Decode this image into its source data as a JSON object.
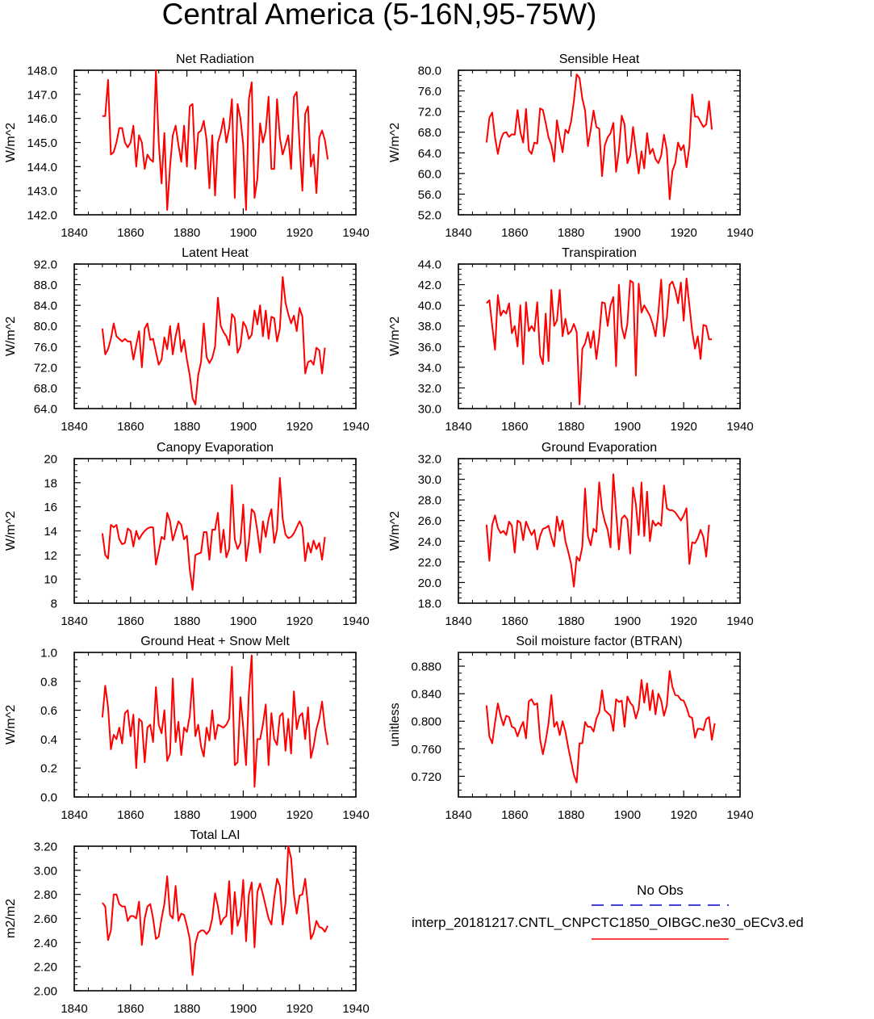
{
  "figure_title": "Central America (5-16N,95-75W)",
  "legend": {
    "obs_label": "No Obs",
    "obs_color": "#0000cc",
    "model_label": "interp_20181217.CNTL_CNPCTC1850_OIBGC.ne30_oECv3.ed",
    "model_color": "#ff0000"
  },
  "colors": {
    "series": "#ff0000",
    "axis": "#000000"
  },
  "chart_data": [
    {
      "type": "line",
      "title": "Net Radiation",
      "ylabel": "W/m^2",
      "xlabel": "",
      "xlim": [
        1840,
        1940
      ],
      "xticks": [
        1840,
        1860,
        1880,
        1900,
        1920,
        1940
      ],
      "ylim": [
        142,
        148
      ],
      "yticks": [
        "142.0",
        "143.0",
        "144.0",
        "145.0",
        "146.0",
        "147.0",
        "148.0"
      ],
      "x_start": 1850,
      "series": [
        {
          "name": "interp_20181217.CNTL_CNPCTC1850_OIBGC.ne30_oECv3.ed",
          "values": [
            146.1,
            146.1,
            147.6,
            144.5,
            144.6,
            145.0,
            145.6,
            145.6,
            145.0,
            144.8,
            145.0,
            145.7,
            144.0,
            145.3,
            145.0,
            143.9,
            144.5,
            144.3,
            144.2,
            148.0,
            145.0,
            143.3,
            145.4,
            142.2,
            144.0,
            145.3,
            145.7,
            144.9,
            144.2,
            145.7,
            144.0,
            146.5,
            146.6,
            143.9,
            145.4,
            145.5,
            145.9,
            145.1,
            143.1,
            145.3,
            142.8,
            145.0,
            145.4,
            146.0,
            145.0,
            145.6,
            146.8,
            142.7,
            146.6,
            146.0,
            144.9,
            142.2,
            146.8,
            147.5,
            142.7,
            143.5,
            145.8,
            145.0,
            145.5,
            146.9,
            143.9,
            143.9,
            146.8,
            145.2,
            144.5,
            144.9,
            145.3,
            143.9,
            146.9,
            147.1,
            144.9,
            143.0,
            146.2,
            146.5,
            144.0,
            144.5,
            142.9,
            145.2,
            145.5,
            145.1,
            144.3
          ]
        }
      ]
    },
    {
      "type": "line",
      "title": "Sensible Heat",
      "ylabel": "W/m^2",
      "xlabel": "",
      "xlim": [
        1840,
        1940
      ],
      "xticks": [
        1840,
        1860,
        1880,
        1900,
        1920,
        1940
      ],
      "ylim": [
        52,
        80
      ],
      "yticks": [
        "52.0",
        "56.0",
        "60.0",
        "64.0",
        "68.0",
        "72.0",
        "76.0",
        "80.0"
      ],
      "x_start": 1850,
      "series": [
        {
          "name": "interp_20181217.CNTL_CNPCTC1850_OIBGC.ne30_oECv3.ed",
          "values": [
            66.0,
            70.8,
            71.8,
            67.0,
            63.8,
            66.5,
            67.8,
            68.0,
            67.1,
            67.6,
            67.5,
            72.3,
            68.0,
            66.0,
            72.5,
            64.5,
            63.8,
            66.0,
            65.8,
            72.6,
            72.3,
            69.8,
            67.0,
            65.5,
            62.3,
            70.3,
            67.0,
            64.1,
            68.5,
            67.8,
            70.0,
            74.0,
            79.2,
            78.5,
            74.5,
            72.2,
            65.3,
            68.5,
            72.2,
            69.0,
            68.7,
            59.5,
            65.5,
            67.0,
            67.8,
            69.8,
            60.3,
            64.5,
            71.2,
            69.5,
            62.0,
            63.5,
            69.0,
            64.5,
            60.0,
            64.3,
            61.0,
            67.8,
            63.8,
            64.8,
            62.8,
            62.0,
            63.5,
            67.5,
            64.5,
            55.0,
            60.5,
            62.0,
            66.0,
            64.5,
            65.5,
            61.2,
            65.2,
            75.3,
            71.0,
            71.0,
            70.0,
            69.0,
            69.5,
            74.0,
            68.5
          ]
        }
      ]
    },
    {
      "type": "line",
      "title": "Latent Heat",
      "ylabel": "W/m^2",
      "xlabel": "",
      "xlim": [
        1840,
        1940
      ],
      "xticks": [
        1840,
        1860,
        1880,
        1900,
        1920,
        1940
      ],
      "ylim": [
        64,
        92
      ],
      "yticks": [
        "64.0",
        "68.0",
        "72.0",
        "76.0",
        "80.0",
        "84.0",
        "88.0",
        "92.0"
      ],
      "x_start": 1850,
      "series": [
        {
          "name": "interp_20181217.CNTL_CNPCTC1850_OIBGC.ne30_oECv3.ed",
          "values": [
            79.5,
            74.5,
            75.5,
            77.5,
            80.5,
            78.0,
            77.5,
            77.0,
            77.5,
            77.0,
            77.0,
            73.5,
            76.3,
            79.0,
            72.0,
            79.5,
            80.5,
            77.3,
            77.5,
            75.0,
            72.5,
            73.5,
            77.8,
            75.5,
            80.0,
            74.5,
            78.0,
            80.5,
            75.0,
            77.3,
            73.5,
            70.5,
            66.0,
            64.8,
            70.5,
            73.0,
            80.5,
            74.0,
            72.8,
            73.8,
            76.0,
            85.5,
            80.0,
            78.8,
            78.0,
            76.3,
            82.3,
            81.5,
            74.8,
            76.0,
            80.8,
            79.8,
            77.5,
            78.3,
            83.0,
            80.3,
            84.0,
            78.0,
            83.0,
            77.5,
            81.8,
            81.5,
            77.0,
            79.5,
            89.5,
            84.5,
            82.3,
            80.5,
            82.0,
            79.0,
            83.5,
            81.8,
            70.8,
            73.0,
            73.3,
            72.5,
            75.8,
            75.3,
            70.8,
            75.8
          ]
        }
      ]
    },
    {
      "type": "line",
      "title": "Transpiration",
      "ylabel": "W/m^2",
      "xlabel": "",
      "xlim": [
        1840,
        1940
      ],
      "xticks": [
        1840,
        1860,
        1880,
        1900,
        1920,
        1940
      ],
      "ylim": [
        30,
        44
      ],
      "yticks": [
        "30.0",
        "32.0",
        "34.0",
        "36.0",
        "38.0",
        "40.0",
        "42.0",
        "44.0"
      ],
      "x_start": 1850,
      "series": [
        {
          "name": "interp_20181217.CNTL_CNPCTC1850_OIBGC.ne30_oECv3.ed",
          "values": [
            40.2,
            40.5,
            38.0,
            35.7,
            41.0,
            39.0,
            39.5,
            39.2,
            40.2,
            37.3,
            38.0,
            36.0,
            40.0,
            34.3,
            40.3,
            37.5,
            38.0,
            37.5,
            40.3,
            35.2,
            34.3,
            39.2,
            34.6,
            41.5,
            38.0,
            38.5,
            41.5,
            37.0,
            38.7,
            37.2,
            37.5,
            38.2,
            37.4,
            30.4,
            35.8,
            36.3,
            37.4,
            35.9,
            37.5,
            34.8,
            37.0,
            40.3,
            40.2,
            38.0,
            40.0,
            40.8,
            34.1,
            42.0,
            37.9,
            36.8,
            38.2,
            42.4,
            42.2,
            33.2,
            42.1,
            39.3,
            40.0,
            39.5,
            39.0,
            38.2,
            37.0,
            39.3,
            42.5,
            37.0,
            38.8,
            42.0,
            42.3,
            41.5,
            40.2,
            42.2,
            38.5,
            42.6,
            40.0,
            37.5,
            35.8,
            37.0,
            34.8,
            38.1,
            38.0,
            36.7,
            36.7
          ]
        }
      ]
    },
    {
      "type": "line",
      "title": "Canopy Evaporation",
      "ylabel": "W/m^2",
      "xlabel": "",
      "xlim": [
        1840,
        1940
      ],
      "xticks": [
        1840,
        1860,
        1880,
        1900,
        1920,
        1940
      ],
      "ylim": [
        8,
        20
      ],
      "yticks": [
        "8",
        "10",
        "12",
        "14",
        "16",
        "18",
        "20"
      ],
      "x_start": 1850,
      "series": [
        {
          "name": "interp_20181217.CNTL_CNPCTC1850_OIBGC.ne30_oECv3.ed",
          "values": [
            13.8,
            12.0,
            11.7,
            14.5,
            14.3,
            14.5,
            13.3,
            12.9,
            13.0,
            14.2,
            14.0,
            12.7,
            14.0,
            13.3,
            13.7,
            14.0,
            14.2,
            14.3,
            14.3,
            11.2,
            12.3,
            13.5,
            13.3,
            15.5,
            14.8,
            13.2,
            14.0,
            14.8,
            14.5,
            13.3,
            13.6,
            10.8,
            9.1,
            12.0,
            12.1,
            12.2,
            13.9,
            13.9,
            11.6,
            14.1,
            14.1,
            15.5,
            12.2,
            14.1,
            11.8,
            12.5,
            17.8,
            13.3,
            12.5,
            13.0,
            16.2,
            11.5,
            13.1,
            15.8,
            15.5,
            14.0,
            12.2,
            14.8,
            13.5,
            15.0,
            15.8,
            13.0,
            14.1,
            18.4,
            15.0,
            13.7,
            13.4,
            13.5,
            13.8,
            14.3,
            14.8,
            14.3,
            11.5,
            13.0,
            12.2,
            13.2,
            12.5,
            13.0,
            11.6,
            13.5
          ]
        }
      ]
    },
    {
      "type": "line",
      "title": "Ground Evaporation",
      "ylabel": "W/m^2",
      "xlabel": "",
      "xlim": [
        1840,
        1940
      ],
      "xticks": [
        1840,
        1860,
        1880,
        1900,
        1920,
        1940
      ],
      "ylim": [
        18,
        32
      ],
      "yticks": [
        "18.0",
        "20.0",
        "22.0",
        "24.0",
        "26.0",
        "28.0",
        "30.0",
        "32.0"
      ],
      "x_start": 1850,
      "series": [
        {
          "name": "interp_20181217.CNTL_CNPCTC1850_OIBGC.ne30_oECv3.ed",
          "values": [
            25.6,
            22.1,
            25.6,
            26.5,
            25.3,
            24.8,
            25.0,
            24.6,
            25.9,
            25.5,
            22.9,
            26.0,
            25.8,
            24.1,
            25.9,
            25.2,
            24.6,
            25.1,
            23.2,
            24.5,
            25.2,
            25.3,
            25.5,
            24.4,
            23.5,
            26.4,
            25.0,
            26.0,
            24.0,
            23.0,
            21.8,
            19.6,
            22.5,
            22.1,
            23.5,
            29.1,
            24.5,
            23.6,
            25.2,
            24.9,
            29.7,
            27.1,
            25.9,
            25.1,
            23.4,
            30.5,
            26.9,
            23.2,
            26.2,
            26.5,
            26.1,
            22.8,
            29.2,
            27.6,
            24.6,
            29.7,
            24.5,
            28.8,
            24.0,
            26.0,
            25.5,
            25.8,
            25.5,
            29.4,
            27.2,
            27.0,
            27.0,
            26.8,
            26.4,
            26.0,
            26.5,
            27.2,
            21.8,
            23.9,
            23.8,
            24.3,
            25.1,
            24.4,
            22.5,
            25.6
          ]
        }
      ]
    },
    {
      "type": "line",
      "title": "Ground Heat + Snow Melt",
      "ylabel": "W/m^2",
      "xlabel": "",
      "xlim": [
        1840,
        1940
      ],
      "xticks": [
        1840,
        1860,
        1880,
        1900,
        1920,
        1940
      ],
      "ylim": [
        0,
        1
      ],
      "yticks": [
        "0.0",
        "0.2",
        "0.4",
        "0.6",
        "0.8",
        "1.0"
      ],
      "x_start": 1850,
      "series": [
        {
          "name": "interp_20181217.CNTL_CNPCTC1850_OIBGC.ne30_oECv3.ed",
          "values": [
            0.55,
            0.77,
            0.62,
            0.33,
            0.43,
            0.4,
            0.48,
            0.37,
            0.58,
            0.6,
            0.42,
            0.57,
            0.2,
            0.54,
            0.52,
            0.24,
            0.48,
            0.5,
            0.38,
            0.76,
            0.5,
            0.44,
            0.6,
            0.25,
            0.3,
            0.82,
            0.38,
            0.52,
            0.29,
            0.48,
            0.45,
            0.56,
            0.82,
            0.42,
            0.5,
            0.35,
            0.28,
            0.48,
            0.39,
            0.6,
            0.4,
            0.5,
            0.49,
            0.48,
            0.5,
            0.54,
            0.9,
            0.22,
            0.24,
            0.69,
            0.48,
            0.22,
            0.72,
            0.98,
            0.07,
            0.4,
            0.4,
            0.5,
            0.64,
            0.22,
            0.58,
            0.4,
            0.36,
            0.56,
            0.58,
            0.32,
            0.54,
            0.3,
            0.73,
            0.47,
            0.56,
            0.58,
            0.4,
            0.62,
            0.27,
            0.35,
            0.47,
            0.54,
            0.66,
            0.48,
            0.36
          ]
        }
      ]
    },
    {
      "type": "line",
      "title": "Soil moisture factor (BTRAN)",
      "ylabel": "unitless",
      "xlabel": "",
      "xlim": [
        1840,
        1940
      ],
      "xticks": [
        1840,
        1860,
        1880,
        1900,
        1920,
        1940
      ],
      "ylim": [
        0.69,
        0.9
      ],
      "yticks": [
        "0.720",
        "0.760",
        "0.800",
        "0.840",
        "0.880"
      ],
      "x_start": 1850,
      "series": [
        {
          "name": "interp_20181217.CNTL_CNPCTC1850_OIBGC.ne30_oECv3.ed",
          "values": [
            0.823,
            0.778,
            0.768,
            0.798,
            0.826,
            0.807,
            0.794,
            0.808,
            0.806,
            0.792,
            0.79,
            0.778,
            0.79,
            0.799,
            0.775,
            0.829,
            0.832,
            0.824,
            0.826,
            0.774,
            0.752,
            0.772,
            0.797,
            0.838,
            0.792,
            0.799,
            0.78,
            0.8,
            0.785,
            0.762,
            0.742,
            0.722,
            0.711,
            0.768,
            0.768,
            0.799,
            0.792,
            0.792,
            0.785,
            0.804,
            0.813,
            0.845,
            0.816,
            0.812,
            0.808,
            0.786,
            0.832,
            0.828,
            0.83,
            0.792,
            0.836,
            0.827,
            0.822,
            0.804,
            0.818,
            0.86,
            0.827,
            0.855,
            0.816,
            0.845,
            0.81,
            0.84,
            0.83,
            0.808,
            0.823,
            0.873,
            0.85,
            0.838,
            0.837,
            0.831,
            0.83,
            0.82,
            0.807,
            0.805,
            0.776,
            0.789,
            0.789,
            0.787,
            0.803,
            0.806,
            0.773,
            0.797
          ]
        }
      ]
    },
    {
      "type": "line",
      "title": "Total LAI",
      "ylabel": "m2/m2",
      "xlabel": "",
      "xlim": [
        1840,
        1940
      ],
      "xticks": [
        1840,
        1860,
        1880,
        1900,
        1920,
        1940
      ],
      "ylim": [
        2,
        3.2
      ],
      "yticks": [
        "2.00",
        "2.20",
        "2.40",
        "2.60",
        "2.80",
        "3.00",
        "3.20"
      ],
      "x_start": 1850,
      "series": [
        {
          "name": "interp_20181217.CNTL_CNPCTC1850_OIBGC.ne30_oECv3.ed",
          "values": [
            2.73,
            2.7,
            2.42,
            2.5,
            2.8,
            2.8,
            2.72,
            2.7,
            2.7,
            2.58,
            2.62,
            2.62,
            2.6,
            2.74,
            2.38,
            2.6,
            2.7,
            2.72,
            2.6,
            2.43,
            2.45,
            2.6,
            2.72,
            2.95,
            2.63,
            2.6,
            2.87,
            2.58,
            2.64,
            2.63,
            2.54,
            2.43,
            2.13,
            2.39,
            2.48,
            2.5,
            2.5,
            2.47,
            2.5,
            2.6,
            2.81,
            2.7,
            2.55,
            2.6,
            2.62,
            2.91,
            2.47,
            2.82,
            2.54,
            2.62,
            2.92,
            2.41,
            2.8,
            2.9,
            2.36,
            2.82,
            2.89,
            2.8,
            2.7,
            2.6,
            2.55,
            2.77,
            2.93,
            2.87,
            2.55,
            2.73,
            3.2,
            3.1,
            2.8,
            2.64,
            2.79,
            2.8,
            2.93,
            2.7,
            2.43,
            2.48,
            2.58,
            2.53,
            2.52,
            2.49,
            2.54
          ]
        }
      ]
    }
  ]
}
